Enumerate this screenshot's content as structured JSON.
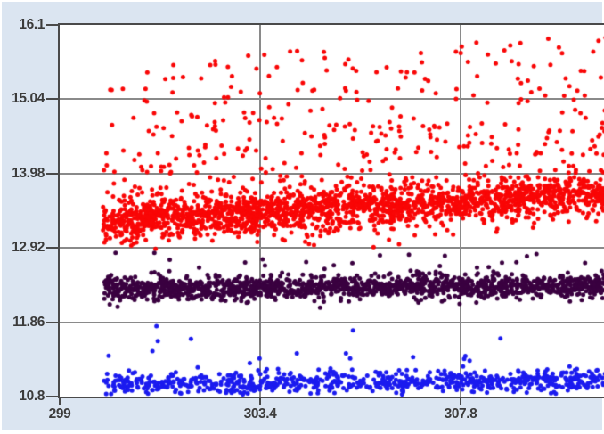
{
  "window": {
    "background_color": "#dbe5f1",
    "outer_border_color": "#ffffff",
    "plot_background": "#ffffff",
    "axis_color": "#4a4a4a",
    "grid_color": "#8a8a8a",
    "tick_label_color": "#3b3b3b"
  },
  "chart_data": {
    "type": "scatter",
    "title": "",
    "legend": "none",
    "grid": true,
    "x_axis": {
      "min": 299,
      "max": 310.95,
      "ticks": [
        {
          "value": 299,
          "label": "299"
        },
        {
          "value": 303.4,
          "label": "303.4"
        },
        {
          "value": 307.8,
          "label": "307.8"
        }
      ]
    },
    "y_axis": {
      "min": 10.8,
      "max": 16.1,
      "ticks": [
        {
          "value": 16.1,
          "label": "16.1"
        },
        {
          "value": 15.04,
          "label": "15.04"
        },
        {
          "value": 13.98,
          "label": "13.98"
        },
        {
          "value": 12.92,
          "label": "12.92"
        },
        {
          "value": 11.86,
          "label": "11.86"
        },
        {
          "value": 10.8,
          "label": "10.8"
        }
      ]
    },
    "series": [
      {
        "name": "upper-red-band",
        "color": "#f90606",
        "marker": "circle",
        "marker_radius": 2.5,
        "seed": 11,
        "x_start": 299.95,
        "x_end": 311.1,
        "band": {
          "n": 1700,
          "center_start": 13.28,
          "center_end": 13.68,
          "sd": 0.14
        },
        "spread_above": {
          "n": 620,
          "min": 0.05,
          "max": 2.3,
          "power": 2.2,
          "y_cap": 16.05
        },
        "spread_below": {
          "n": 35,
          "min": 0.1,
          "max": 0.6,
          "power": 2.0
        },
        "approx_y_range": [
          12.9,
          16.05
        ],
        "trend": "dense band rising slightly left to right with heavy scatter above up to ~16.0"
      },
      {
        "name": "middle-dark-purple-band",
        "color": "#3a0140",
        "marker": "circle",
        "marker_radius": 2.5,
        "seed": 22,
        "x_start": 299.95,
        "x_end": 311.1,
        "band": {
          "n": 1500,
          "center_start": 12.33,
          "center_end": 12.38,
          "sd": 0.08
        },
        "spread_above": {
          "n": 45,
          "min": 0.12,
          "max": 0.55,
          "power": 2.0,
          "y_cap": 12.9
        },
        "spread_below": {
          "n": 10,
          "min": 0.05,
          "max": 0.3,
          "power": 2.0
        },
        "approx_y_range": [
          12.05,
          12.9
        ],
        "trend": "flat dense band near 12.35 with occasional dots up to ~12.9"
      },
      {
        "name": "lower-blue-band",
        "color": "#1b1bef",
        "marker": "circle",
        "marker_radius": 2.5,
        "seed": 33,
        "x_start": 299.95,
        "x_end": 311.1,
        "band": {
          "n": 750,
          "center_start": 10.98,
          "center_end": 11.03,
          "sd": 0.075,
          "clamp_min": 10.83
        },
        "spread_above": {
          "n": 30,
          "min": 0.15,
          "max": 0.85,
          "power": 2.2,
          "y_cap": 11.88
        },
        "spread_below": {
          "n": 0,
          "min": 0,
          "max": 0,
          "power": 1
        },
        "approx_y_range": [
          10.83,
          11.88
        ],
        "trend": "flat dense band near 11.0 hugging the bottom axis, sparse dots up to ~11.85"
      }
    ]
  }
}
